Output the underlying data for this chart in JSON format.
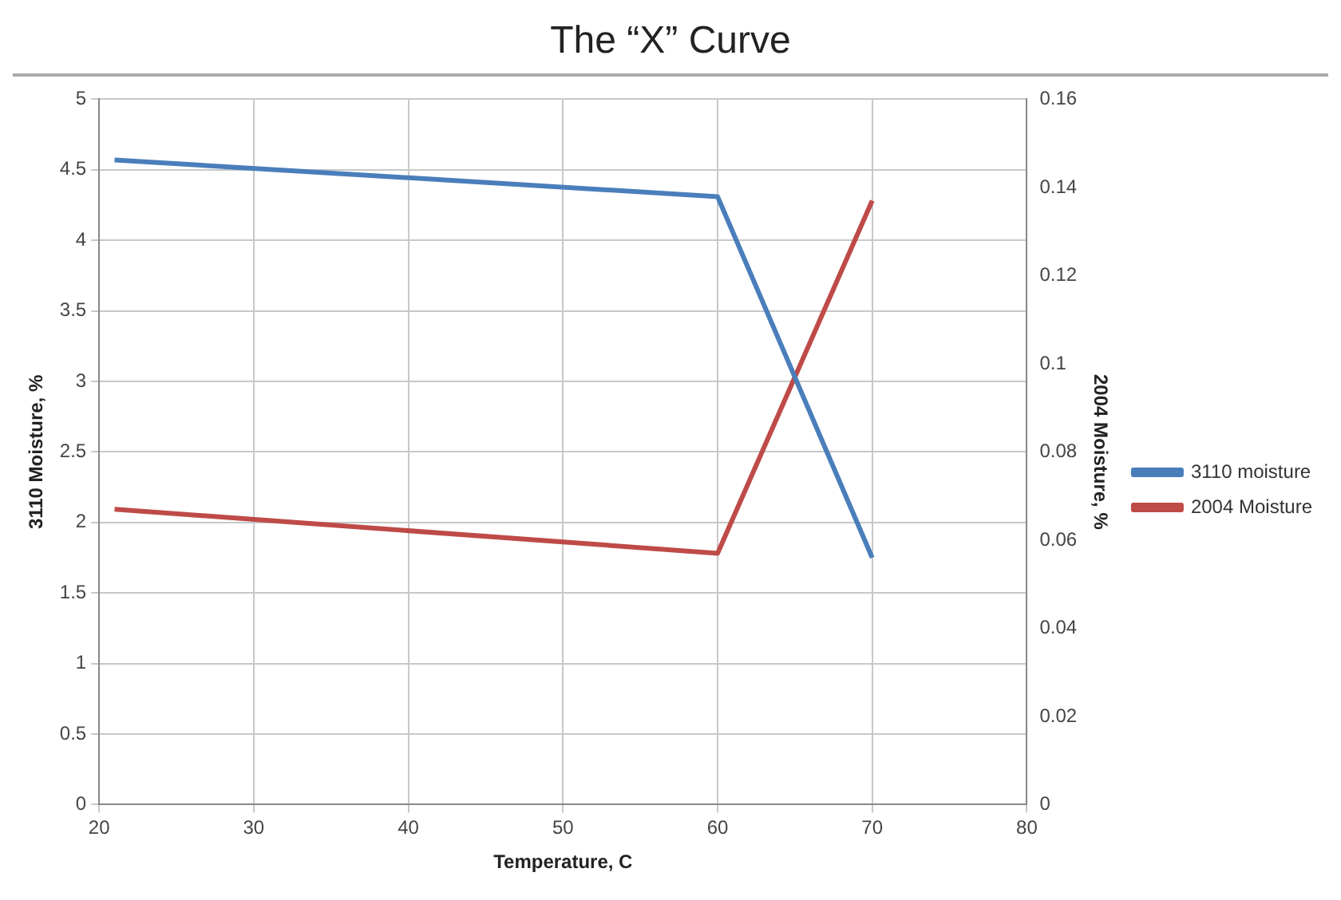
{
  "chart_data": {
    "type": "line",
    "title": "The “X” Curve",
    "xlabel": "Temperature, C",
    "ylabel": "3110 Moisture, %",
    "y2label": "2004 Moisture, %",
    "x": [
      21,
      60,
      70
    ],
    "series": [
      {
        "name": "3110 moisture",
        "color": "#4a7ebb",
        "values": [
          4.57,
          4.31,
          1.75
        ]
      },
      {
        "name": "2004 Moisture",
        "color": "#be4b48",
        "values": [
          0.067,
          0.057,
          0.137
        ],
        "axis": "y2"
      }
    ],
    "xlim": [
      20,
      80
    ],
    "xticks": [
      20,
      30,
      40,
      50,
      60,
      70,
      80
    ],
    "ylim": [
      0,
      5
    ],
    "yticks": [
      0,
      0.5,
      1,
      1.5,
      2,
      2.5,
      3,
      3.5,
      4,
      4.5,
      5
    ],
    "y2lim": [
      0,
      0.16
    ],
    "y2ticks": [
      0,
      0.02,
      0.04,
      0.06,
      0.08,
      0.1,
      0.12,
      0.14,
      0.16
    ],
    "grid": true,
    "legend": "right",
    "marker": "none",
    "line_style": "solid"
  }
}
